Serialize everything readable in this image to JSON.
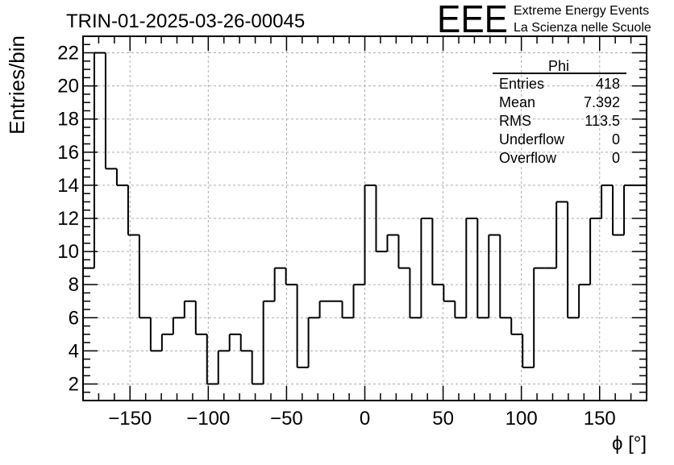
{
  "title": "TRIN-01-2025-03-26-00045",
  "logo": {
    "mark": "EEE",
    "line1": "Extreme Energy Events",
    "line2": "La Scienza nelle Scuole",
    "color": "#1f1fe0"
  },
  "stats": {
    "name": "Phi",
    "rows": [
      {
        "label": "Entries",
        "value": "418"
      },
      {
        "label": "Mean",
        "value": "7.392"
      },
      {
        "label": "RMS",
        "value": "113.5"
      },
      {
        "label": "Underflow",
        "value": "0"
      },
      {
        "label": "Overflow",
        "value": "0"
      }
    ]
  },
  "chart_data": {
    "type": "histogram",
    "title": "TRIN-01-2025-03-26-00045",
    "xlabel": "ϕ [°]",
    "ylabel": "Entries/bin",
    "xlim": [
      -180,
      180
    ],
    "ylim": [
      1,
      23
    ],
    "bin_width": 7.2,
    "bin_edges_start": -180,
    "grid": true,
    "x_ticks": [
      -150,
      -100,
      -50,
      0,
      50,
      100,
      150
    ],
    "y_ticks": [
      2,
      4,
      6,
      8,
      10,
      12,
      14,
      16,
      18,
      20,
      22
    ],
    "values": [
      9,
      22,
      15,
      14,
      11,
      6,
      4,
      5,
      6,
      7,
      5,
      2,
      4,
      5,
      4,
      2,
      7,
      9,
      8,
      3,
      6,
      7,
      7,
      6,
      8,
      14,
      10,
      11,
      9,
      6,
      12,
      8,
      7,
      6,
      12,
      6,
      11,
      6,
      5,
      3,
      9,
      9,
      13,
      6,
      8,
      12,
      14,
      11,
      14,
      14
    ]
  }
}
